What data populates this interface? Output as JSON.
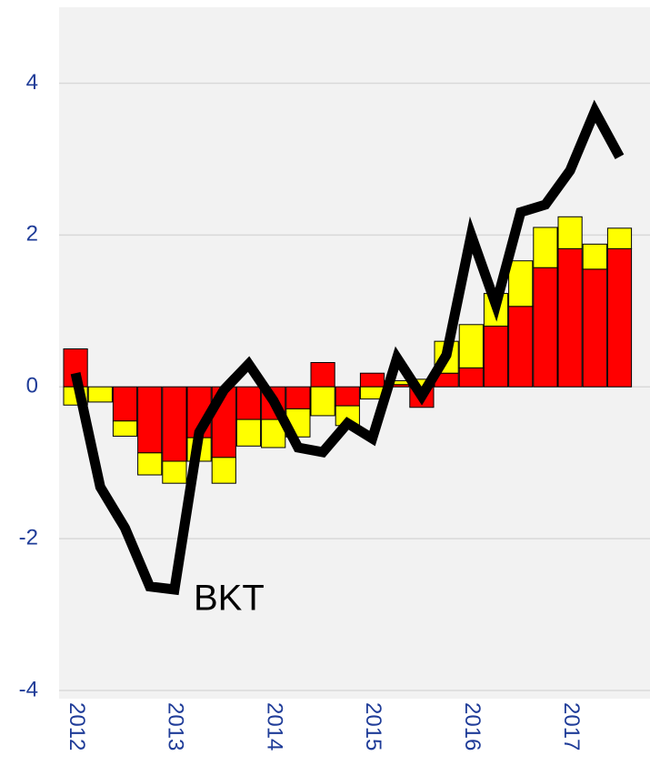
{
  "chart_data": {
    "type": "bar",
    "categories": [
      "2012",
      null,
      null,
      null,
      "2013",
      null,
      null,
      null,
      "2014",
      null,
      null,
      null,
      "2015",
      null,
      null,
      null,
      "2016",
      null,
      null,
      null,
      "2017",
      null,
      null
    ],
    "series": [
      {
        "color": "#ff0000",
        "values": [
          0.5,
          0,
          -0.45,
          -0.87,
          -0.98,
          -0.67,
          -0.93,
          -0.43,
          -0.43,
          -0.29,
          0.32,
          -0.25,
          0.18,
          0.03,
          -0.27,
          0.18,
          0.25,
          0.8,
          1.06,
          1.57,
          1.82,
          1.55,
          1.82
        ]
      },
      {
        "color": "#ffff00",
        "values": [
          -0.24,
          -0.2,
          -0.2,
          -0.29,
          -0.29,
          -0.31,
          -0.34,
          -0.35,
          -0.37,
          -0.37,
          -0.38,
          -0.26,
          -0.16,
          0.05,
          0.1,
          0.42,
          0.57,
          0.43,
          0.6,
          0.53,
          0.42,
          0.33,
          0.27
        ]
      },
      {
        "name": "BKT",
        "type": "line",
        "color": "#000000",
        "values": [
          0.18,
          -1.32,
          -1.86,
          -2.63,
          -2.67,
          -0.6,
          -0.04,
          0.3,
          -0.18,
          -0.8,
          -0.86,
          -0.48,
          -0.68,
          0.38,
          -0.12,
          0.42,
          2.0,
          1.08,
          2.3,
          2.4,
          2.85,
          3.63,
          3.03
        ]
      }
    ],
    "ylim": [
      -4,
      5
    ],
    "yticks": [
      -4,
      -2,
      0,
      2,
      4
    ],
    "grid": true
  }
}
